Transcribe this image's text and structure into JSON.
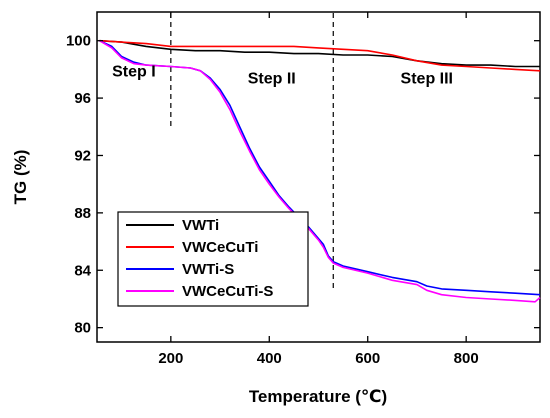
{
  "chart_data": {
    "type": "line",
    "title": "",
    "xlabel": "Temperature (℃)",
    "ylabel": "TG (%)",
    "xlim": [
      50,
      950
    ],
    "ylim": [
      79,
      102
    ],
    "xticks": [
      200,
      400,
      600,
      800
    ],
    "yticks": [
      80,
      84,
      88,
      92,
      96,
      100
    ],
    "x_tick_labels": [
      "200",
      "400",
      "600",
      "800"
    ],
    "y_tick_labels": [
      "80",
      "84",
      "88",
      "92",
      "96",
      "100"
    ],
    "grid": false,
    "legend_position": "bottom-left",
    "step_dividers": [
      200,
      530
    ],
    "annotations": [
      {
        "text": "Step I",
        "x": 125,
        "y": 97.5
      },
      {
        "text": "Step II",
        "x": 405,
        "y": 97.0
      },
      {
        "text": "Step III",
        "x": 720,
        "y": 97.0
      }
    ],
    "series": [
      {
        "name": "VWTi",
        "color": "#000000",
        "points": [
          [
            55,
            100.0
          ],
          [
            100,
            99.9
          ],
          [
            150,
            99.6
          ],
          [
            200,
            99.4
          ],
          [
            250,
            99.3
          ],
          [
            300,
            99.3
          ],
          [
            350,
            99.2
          ],
          [
            400,
            99.2
          ],
          [
            450,
            99.1
          ],
          [
            500,
            99.1
          ],
          [
            550,
            99.0
          ],
          [
            600,
            99.0
          ],
          [
            650,
            98.9
          ],
          [
            700,
            98.6
          ],
          [
            750,
            98.4
          ],
          [
            800,
            98.3
          ],
          [
            850,
            98.3
          ],
          [
            900,
            98.2
          ],
          [
            950,
            98.2
          ]
        ]
      },
      {
        "name": "VWCeCuTi",
        "color": "#ff0000",
        "points": [
          [
            55,
            100.0
          ],
          [
            100,
            99.9
          ],
          [
            150,
            99.8
          ],
          [
            200,
            99.6
          ],
          [
            250,
            99.6
          ],
          [
            300,
            99.6
          ],
          [
            350,
            99.6
          ],
          [
            400,
            99.6
          ],
          [
            450,
            99.6
          ],
          [
            500,
            99.5
          ],
          [
            550,
            99.4
          ],
          [
            600,
            99.3
          ],
          [
            650,
            99.0
          ],
          [
            700,
            98.6
          ],
          [
            750,
            98.3
          ],
          [
            800,
            98.2
          ],
          [
            850,
            98.1
          ],
          [
            900,
            98.0
          ],
          [
            950,
            97.9
          ]
        ]
      },
      {
        "name": "VWTi-S",
        "color": "#0000ff",
        "points": [
          [
            55,
            100.0
          ],
          [
            80,
            99.6
          ],
          [
            100,
            98.9
          ],
          [
            125,
            98.5
          ],
          [
            150,
            98.3
          ],
          [
            200,
            98.2
          ],
          [
            240,
            98.1
          ],
          [
            260,
            97.9
          ],
          [
            280,
            97.4
          ],
          [
            300,
            96.6
          ],
          [
            320,
            95.5
          ],
          [
            340,
            94.0
          ],
          [
            360,
            92.5
          ],
          [
            380,
            91.2
          ],
          [
            400,
            90.2
          ],
          [
            420,
            89.2
          ],
          [
            440,
            88.4
          ],
          [
            460,
            87.7
          ],
          [
            480,
            87.0
          ],
          [
            500,
            86.2
          ],
          [
            510,
            85.8
          ],
          [
            520,
            85.0
          ],
          [
            530,
            84.6
          ],
          [
            550,
            84.3
          ],
          [
            600,
            83.9
          ],
          [
            650,
            83.5
          ],
          [
            700,
            83.2
          ],
          [
            720,
            82.9
          ],
          [
            750,
            82.7
          ],
          [
            800,
            82.6
          ],
          [
            850,
            82.5
          ],
          [
            900,
            82.4
          ],
          [
            950,
            82.3
          ]
        ]
      },
      {
        "name": "VWCeCuTi-S",
        "color": "#ff00ff",
        "points": [
          [
            55,
            100.0
          ],
          [
            80,
            99.5
          ],
          [
            100,
            98.8
          ],
          [
            125,
            98.4
          ],
          [
            150,
            98.3
          ],
          [
            200,
            98.2
          ],
          [
            240,
            98.1
          ],
          [
            260,
            97.9
          ],
          [
            280,
            97.3
          ],
          [
            300,
            96.4
          ],
          [
            320,
            95.2
          ],
          [
            340,
            93.7
          ],
          [
            360,
            92.3
          ],
          [
            380,
            91.0
          ],
          [
            400,
            90.0
          ],
          [
            420,
            89.1
          ],
          [
            440,
            88.3
          ],
          [
            460,
            87.6
          ],
          [
            480,
            86.9
          ],
          [
            500,
            86.1
          ],
          [
            510,
            85.6
          ],
          [
            520,
            84.9
          ],
          [
            530,
            84.5
          ],
          [
            550,
            84.2
          ],
          [
            600,
            83.8
          ],
          [
            650,
            83.3
          ],
          [
            700,
            83.0
          ],
          [
            720,
            82.6
          ],
          [
            750,
            82.3
          ],
          [
            800,
            82.1
          ],
          [
            850,
            82.0
          ],
          [
            900,
            81.9
          ],
          [
            940,
            81.8
          ],
          [
            950,
            82.1
          ]
        ]
      }
    ]
  }
}
